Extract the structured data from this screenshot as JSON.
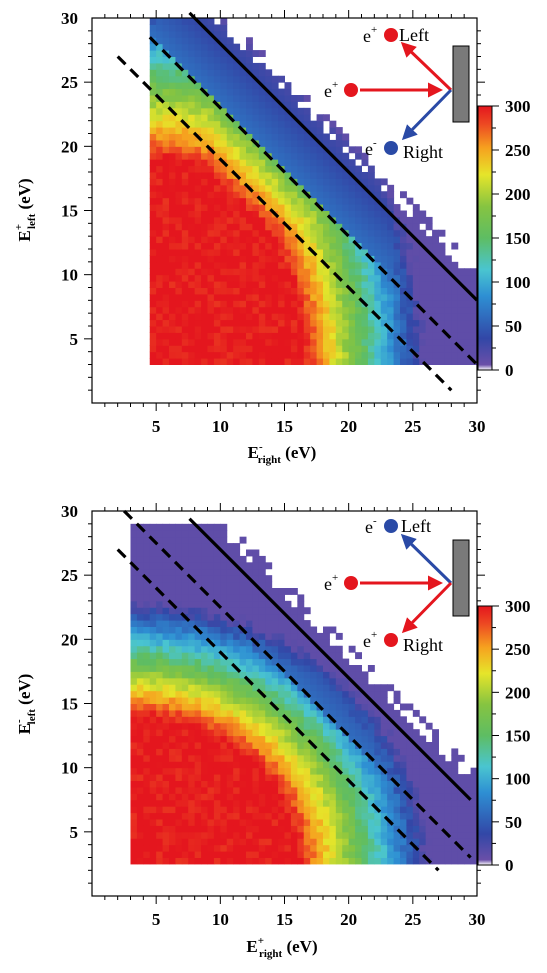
{
  "chart_data": [
    {
      "type": "heatmap",
      "id": "top",
      "xlabel": {
        "base": "E",
        "sup": "-",
        "sub": "right",
        "unit": " (eV)"
      },
      "ylabel": {
        "base": "E",
        "sup": "+",
        "sub": "left",
        "unit": " (eV)"
      },
      "xlim": [
        0,
        30
      ],
      "ylim": [
        0,
        30
      ],
      "x_ticks": [
        5,
        10,
        15,
        20,
        25,
        30
      ],
      "y_ticks": [
        5,
        10,
        15,
        20,
        25,
        30
      ],
      "colorbar": {
        "min": 0,
        "max": 300,
        "ticks": [
          0,
          50,
          100,
          150,
          200,
          250,
          300
        ]
      },
      "shape": {
        "x_min": 4.5,
        "y_min": 3.0,
        "y_max": 30.0,
        "sum_max": 38.5,
        "red_center": [
          4.5,
          3.0
        ],
        "red_rx": 11.5,
        "red_ry": 15.5,
        "red_roll_sum": 30.5,
        "right_sparse_x": 18.5,
        "right_sparse_y": 19.0
      },
      "solid_line": {
        "label": "",
        "sum": 38.0,
        "x_range": [
          7.6,
          30
        ]
      },
      "dashed_lines": [
        {
          "sum": 33.0,
          "x_range": [
            4.5,
            30
          ]
        },
        {
          "sum": 29.0,
          "x_range": [
            2.0,
            28.0
          ]
        }
      ],
      "inset": {
        "incoming": {
          "charge": "e",
          "sign": "+",
          "color": "#e4161e"
        },
        "upper": {
          "charge": "e",
          "sign": "+",
          "label": "Left",
          "color": "#e4161e"
        },
        "lower": {
          "charge": "e",
          "sign": "-",
          "label": "Right",
          "color": "#2a4aa6"
        }
      }
    },
    {
      "type": "heatmap",
      "id": "bottom",
      "xlabel": {
        "base": "E",
        "sup": "+",
        "sub": "right",
        "unit": " (eV)"
      },
      "ylabel": {
        "base": "E",
        "sup": "-",
        "sub": "left",
        "unit": " (eV)"
      },
      "xlim": [
        0,
        30
      ],
      "ylim": [
        0,
        30
      ],
      "x_ticks": [
        5,
        10,
        15,
        20,
        25,
        30
      ],
      "y_ticks": [
        5,
        10,
        15,
        20,
        25,
        30
      ],
      "colorbar": {
        "min": 0,
        "max": 300,
        "ticks": [
          0,
          50,
          100,
          150,
          200,
          250,
          300
        ]
      },
      "shape": {
        "x_min": 3.0,
        "y_min": 2.5,
        "y_max": 29.0,
        "sum_max": 37.5,
        "red_center": [
          3.0,
          2.5
        ],
        "red_rx": 12.5,
        "red_ry": 11.0,
        "red_roll_sum": 30.0,
        "right_sparse_x": 20.0,
        "right_sparse_y": 21.0
      },
      "solid_line": {
        "label": "",
        "sum": 37.0,
        "x_range": [
          7.6,
          29.5
        ]
      },
      "dashed_lines": [
        {
          "sum": 32.5,
          "x_range": [
            2.5,
            29.5
          ]
        },
        {
          "sum": 29.0,
          "x_range": [
            2.0,
            27.0
          ]
        }
      ],
      "inset": {
        "incoming": {
          "charge": "e",
          "sign": "+",
          "color": "#e4161e"
        },
        "upper": {
          "charge": "e",
          "sign": "-",
          "label": "Left",
          "color": "#2a4aa6"
        },
        "lower": {
          "charge": "e",
          "sign": "+",
          "label": "Right",
          "color": "#e4161e"
        }
      }
    }
  ]
}
